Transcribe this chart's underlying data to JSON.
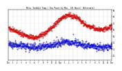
{
  "title": "Milw. Outdoor Temp / Dew Point by Min. (24 Hours) (Alternate)",
  "temp_color": "#cc0000",
  "dew_color": "#0000cc",
  "bg_color": "#ffffff",
  "grid_color": "#bbbbbb",
  "text_color": "#000000",
  "ylim": [
    13,
    91
  ],
  "xlim": [
    0,
    1440
  ],
  "yticks": [
    20,
    30,
    40,
    50,
    60,
    70,
    80,
    90
  ],
  "xticks": [
    0,
    60,
    120,
    180,
    240,
    300,
    360,
    420,
    480,
    540,
    600,
    660,
    720,
    780,
    840,
    900,
    960,
    1020,
    1080,
    1140,
    1200,
    1260,
    1320,
    1380,
    1440
  ],
  "xlabel_vals": [
    "12a",
    "1",
    "2",
    "3",
    "4",
    "5",
    "6",
    "7",
    "8",
    "9",
    "10",
    "11",
    "12p",
    "1",
    "2",
    "3",
    "4",
    "5",
    "6",
    "7",
    "8",
    "9",
    "10",
    "11",
    "12a"
  ],
  "temp_profile": [
    [
      0,
      62
    ],
    [
      60,
      60
    ],
    [
      120,
      57
    ],
    [
      180,
      54
    ],
    [
      240,
      51
    ],
    [
      300,
      49
    ],
    [
      360,
      48
    ],
    [
      420,
      50
    ],
    [
      480,
      53
    ],
    [
      540,
      58
    ],
    [
      600,
      63
    ],
    [
      660,
      70
    ],
    [
      720,
      76
    ],
    [
      780,
      81
    ],
    [
      840,
      82
    ],
    [
      900,
      81
    ],
    [
      960,
      78
    ],
    [
      1020,
      72
    ],
    [
      1080,
      67
    ],
    [
      1140,
      64
    ],
    [
      1200,
      62
    ],
    [
      1260,
      60
    ],
    [
      1320,
      61
    ],
    [
      1380,
      63
    ],
    [
      1440,
      64
    ]
  ],
  "dew_profile": [
    [
      0,
      38
    ],
    [
      60,
      37
    ],
    [
      120,
      36
    ],
    [
      180,
      36
    ],
    [
      240,
      35
    ],
    [
      300,
      34
    ],
    [
      360,
      33
    ],
    [
      420,
      33
    ],
    [
      480,
      34
    ],
    [
      540,
      35
    ],
    [
      600,
      36
    ],
    [
      660,
      38
    ],
    [
      720,
      40
    ],
    [
      780,
      42
    ],
    [
      840,
      41
    ],
    [
      900,
      40
    ],
    [
      960,
      39
    ],
    [
      1020,
      37
    ],
    [
      1080,
      36
    ],
    [
      1140,
      35
    ],
    [
      1200,
      34
    ],
    [
      1260,
      33
    ],
    [
      1320,
      33
    ],
    [
      1380,
      34
    ],
    [
      1440,
      35
    ]
  ]
}
